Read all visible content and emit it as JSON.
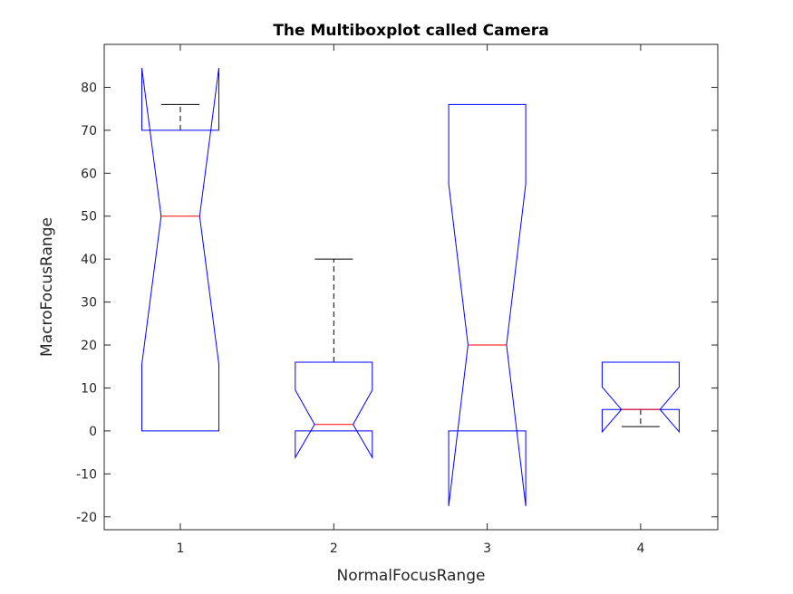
{
  "chart_data": {
    "type": "boxplot",
    "notched": true,
    "title": "The Multiboxplot called Camera",
    "xlabel": "NormalFocusRange",
    "ylabel": "MacroFocusRange",
    "categories": [
      "1",
      "2",
      "3",
      "4"
    ],
    "ylim": [
      -23,
      90
    ],
    "yticks": [
      -20,
      -10,
      0,
      10,
      20,
      30,
      40,
      50,
      60,
      70,
      80
    ],
    "box_color": "#0000ff",
    "median_color": "#ff0000",
    "whisker_color": "#000000",
    "boxes": [
      {
        "category": "1",
        "whisker_low": 0,
        "q1": 0,
        "median": 50,
        "q3": 70,
        "whisker_high": 76,
        "notch_low": 15.5,
        "notch_high": 84.5
      },
      {
        "category": "2",
        "whisker_low": 0,
        "q1": 0,
        "median": 1.5,
        "q3": 16,
        "whisker_high": 40,
        "notch_low": -6.2,
        "notch_high": 9.5
      },
      {
        "category": "3",
        "whisker_low": 0,
        "q1": 0,
        "median": 20,
        "q3": 76,
        "whisker_high": 76,
        "notch_low": -17.5,
        "notch_high": 57.5
      },
      {
        "category": "4",
        "whisker_low": 1,
        "q1": 5,
        "median": 5,
        "q3": 16,
        "whisker_high": 16,
        "notch_low": -0.2,
        "notch_high": 10.2
      }
    ]
  }
}
